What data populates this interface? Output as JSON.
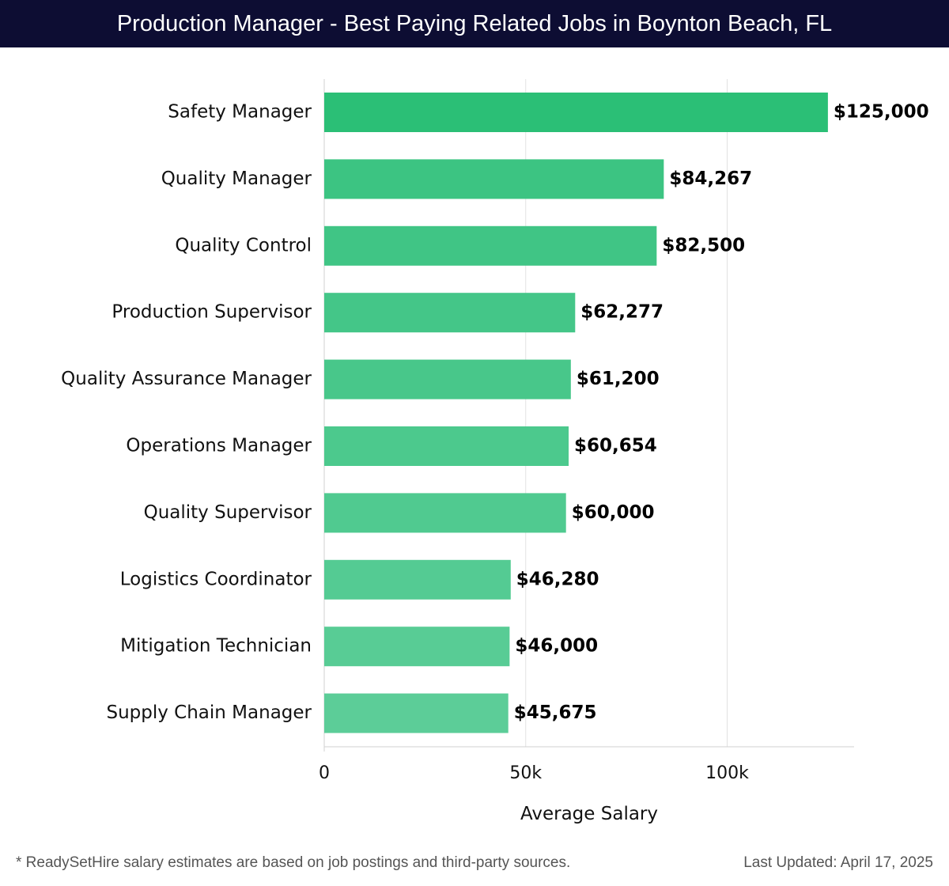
{
  "header": {
    "title": "Production Manager - Best Paying Related Jobs in Boynton Beach, FL"
  },
  "chart_data": {
    "type": "bar",
    "orientation": "horizontal",
    "categories": [
      "Safety Manager",
      "Quality Manager",
      "Quality Control",
      "Production Supervisor",
      "Quality Assurance Manager",
      "Operations Manager",
      "Quality Supervisor",
      "Logistics Coordinator",
      "Mitigation Technician",
      "Supply Chain Manager"
    ],
    "values": [
      125000,
      84267,
      82500,
      62277,
      61200,
      60654,
      60000,
      46280,
      46000,
      45675
    ],
    "value_labels": [
      "$125,000",
      "$84,267",
      "$82,500",
      "$62,277",
      "$61,200",
      "$60,654",
      "$60,000",
      "$46,280",
      "$46,000",
      "$45,675"
    ],
    "xlabel": "Average Salary",
    "ylabel": "",
    "xlim": [
      0,
      131500
    ],
    "xticks": [
      0,
      50000,
      100000
    ],
    "xtick_labels": [
      "0",
      "50k",
      "100k"
    ],
    "grid": true,
    "colors": {
      "top_bar": "#2bbf76",
      "bar_start": "#3cc482",
      "bar_end": "#5ccd98",
      "grid": "#e2e2e2",
      "axis": "#d0d0d0"
    }
  },
  "footer": {
    "note": "* ReadySetHire salary estimates are based on job postings and third-party sources.",
    "updated": "Last Updated: April 17, 2025"
  }
}
